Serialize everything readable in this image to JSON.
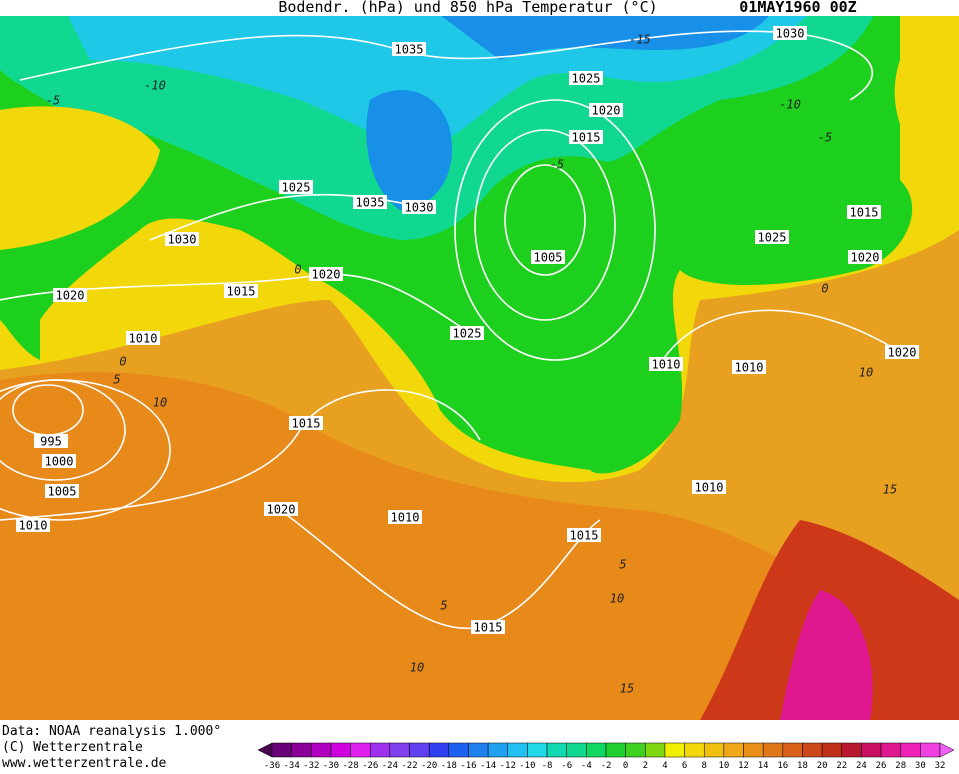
{
  "header": {
    "title": "Bodendr. (hPa) und 850 hPa Temperatur (°C)",
    "date": "01MAY1960 00Z"
  },
  "footer": {
    "source": "Data: NOAA reanalysis 1.000°",
    "copyright": "(C) Wetterzentrale",
    "url": "www.wetterzentrale.de"
  },
  "colorbar": {
    "ticks": [
      -36,
      -34,
      -32,
      -30,
      -28,
      -26,
      -24,
      -22,
      -20,
      -18,
      -16,
      -14,
      -12,
      -10,
      -8,
      -6,
      -4,
      -2,
      0,
      2,
      4,
      6,
      8,
      10,
      12,
      14,
      16,
      18,
      20,
      22,
      24,
      26,
      28,
      30,
      32
    ]
  },
  "isobar_labels": [
    1035,
    1030,
    1025,
    1020,
    1015,
    1025,
    1035,
    1030,
    1015,
    1030,
    1025,
    1005,
    1020,
    1020,
    1015,
    1020,
    1025,
    1010,
    1020,
    1010,
    1010,
    1015,
    995,
    1000,
    1005,
    1010,
    1020,
    1010,
    1010,
    1015,
    1015
  ],
  "temperature_labels": [
    -15,
    -10,
    -5,
    -10,
    -5,
    -5,
    0,
    0,
    0,
    5,
    10,
    10,
    15,
    5,
    10,
    5,
    10,
    15
  ]
}
